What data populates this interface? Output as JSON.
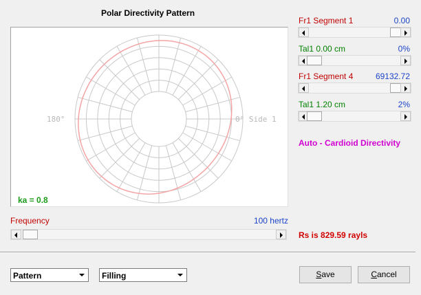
{
  "title": "Polar Directivity Pattern",
  "plot": {
    "left_label": "180°",
    "right_label": "0° Side 1",
    "ka": "ka = 0.8"
  },
  "frequency": {
    "label": "Frequency",
    "value": "100 hertz"
  },
  "controls": [
    {
      "label": "Fr1  Segment 1",
      "value": "0.00"
    },
    {
      "label": "Tal1  0.00 cm",
      "value": "0%"
    },
    {
      "label": "Fr1  Segment 4",
      "value": "69132.72"
    },
    {
      "label": "Tal1  1.20 cm",
      "value": "2%"
    }
  ],
  "mode": "Auto - Cardioid Directivity",
  "rs": "Rs is 829.59 rayls",
  "dropdowns": [
    "Pattern",
    "Filling"
  ],
  "buttons": [
    "Save",
    "Cancel"
  ]
}
